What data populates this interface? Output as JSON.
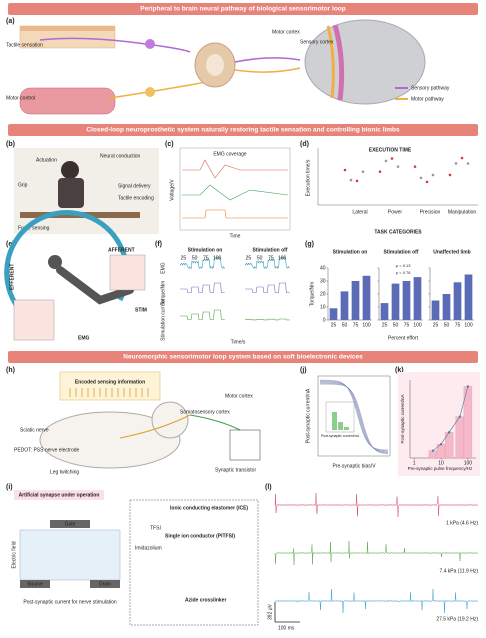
{
  "banners": [
    "Peripheral to brain neural pathway of biological sensorimotor loop",
    "Closed-loop neuroprosthetic system naturally restoring tactile sensation and controlling bionic limbs",
    "Neuromorphic sensorimotor loop system based on soft bioelectronic devices"
  ],
  "panel_labels": [
    "(a)",
    "(b)",
    "(c)",
    "(d)",
    "(e)",
    "(f)",
    "(g)",
    "(h)",
    "(i)",
    "(j)",
    "(k)",
    "(l)"
  ],
  "a": {
    "tactile": "Tactile sensation",
    "motor": "Motor control",
    "motor_cortex": "Motor cortex",
    "sensory_cortex": "Sensory cortex",
    "legend": [
      {
        "name": "Sensory pathway",
        "color": "#b06ad0"
      },
      {
        "name": "Motor pathway",
        "color": "#f0b040"
      }
    ]
  },
  "b": {
    "actuation": "Actuation",
    "grip": "Grip",
    "neural": "Neural conduction",
    "signal": "Signal delivery",
    "tactile": "Tactile encoding",
    "force": "Force sensing"
  },
  "c": {
    "coverage": "EMG coverage",
    "xlabel": "Time",
    "ylabel": "Voltage/V"
  },
  "d": {
    "title": "EXECUTION TIME",
    "xlabel": "TASK CATEGORIES",
    "ylabel": "Execution time/s",
    "tasks": [
      "Lateral",
      "Power",
      "Precision",
      "Manipulation"
    ]
  },
  "e": {
    "afferent": "AFFERENT",
    "efferent": "EFFERENT",
    "stim": "STIM",
    "emg": "EMG"
  },
  "f": {
    "on": "Stimulation on",
    "off": "Stimulation off",
    "emg": "EMG",
    "torque": "Torque/Nm",
    "current": "Stimulation current",
    "xlabel": "Time/s",
    "efforts": [
      25,
      50,
      75,
      100
    ]
  },
  "chart_data": [
    {
      "type": "bar",
      "ylabel": "Torque/Nm",
      "xlabel": "Percent effort",
      "ylim": [
        0,
        40
      ],
      "yticks": [
        0,
        10,
        20,
        30,
        40
      ],
      "color": "#5b6bb5",
      "categories": [
        "25",
        "50",
        "75",
        "100"
      ],
      "panels": [
        {
          "title": "Stimulation on",
          "values": [
            9,
            22,
            30,
            34
          ]
        },
        {
          "title": "Stimulation off",
          "values": [
            13,
            28,
            30,
            33
          ],
          "annotations": [
            "p = 0.13",
            "p = 0.76"
          ]
        },
        {
          "title": "Unaffected limb",
          "values": [
            15,
            20,
            29,
            35
          ]
        }
      ]
    },
    {
      "type": "bar",
      "ylabel": "Post-synaptic current/nA",
      "xlabel": "Pre-synaptic pulse frequency/Hz",
      "log_x": true,
      "xlim": [
        0.7,
        200
      ],
      "xticks": [
        1,
        10,
        100
      ],
      "ylim": [
        0,
        85
      ],
      "color": "#f4b8c8",
      "x": [
        5,
        10,
        20,
        50,
        100
      ],
      "values": [
        8,
        15,
        28,
        45,
        78
      ]
    }
  ],
  "h": {
    "encoded": "Encoded sensing information",
    "somato": "Somatosensory cortex",
    "motor": "Motor cortex",
    "sciatic": "Sciatic nerve",
    "pedot": "PEDOT: PSS nerve electrode",
    "leg": "Leg twitching",
    "transistor": "Synaptic transistor"
  },
  "i": {
    "title": "Artificial synapse under operation",
    "gate": "Gate",
    "source": "Source",
    "drain": "Drain",
    "field": "Electric field",
    "post": "Post-synaptic current for nerve stimulation",
    "ice": "Ionic conducting elastomer (ICE)",
    "sic": "Single ion conductor (PITFSI)",
    "imid": "Imidazolium",
    "tfsi": "TFSI",
    "azide": "Azide crosslinker"
  },
  "j": {
    "ylabel": "Post-synaptic current/nA",
    "xlabel": "Pre-synaptic bias/V",
    "inset_x": "Post-synaptic current/nA"
  },
  "l": {
    "traces": [
      {
        "label": "1 kPa (4.6 Hz)",
        "color": "#d84a6a"
      },
      {
        "label": "7.4 kPa (11.9 Hz)",
        "color": "#5aa84a"
      },
      {
        "label": "27.5 kPa (19.2 Hz)",
        "color": "#3aa0d0"
      }
    ],
    "scale_x": "100 ms",
    "scale_y": "392 μV"
  }
}
